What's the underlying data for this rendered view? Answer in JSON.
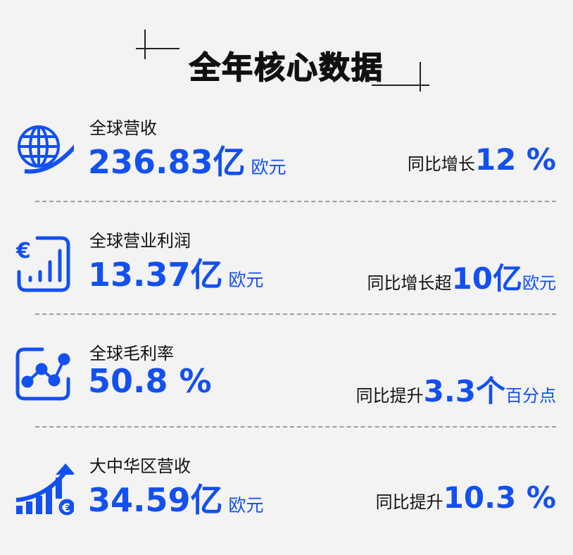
{
  "title": "全年核心数据",
  "accent_color": "#1350f0",
  "rows": [
    {
      "icon": "globe-arrow-icon",
      "label": "全球营收",
      "value": "236.83亿",
      "unit": "欧元",
      "compare_prefix": "同比增长",
      "compare_value": "12 %",
      "compare_suffix": ""
    },
    {
      "icon": "euro-bar-chart-icon",
      "label": "全球营业利润",
      "value": "13.37亿",
      "unit": "欧元",
      "compare_prefix": "同比增长超",
      "compare_value": "10亿",
      "compare_suffix": "欧元"
    },
    {
      "icon": "line-chart-icon",
      "label": "全球毛利率",
      "value": "50.8 %",
      "unit": "",
      "compare_prefix": "同比提升",
      "compare_value": "3.3个",
      "compare_suffix": "百分点"
    },
    {
      "icon": "growth-euro-icon",
      "label": "大中华区营收",
      "value": "34.59亿",
      "unit": "欧元",
      "compare_prefix": "同比提升",
      "compare_value": "10.3 %",
      "compare_suffix": ""
    }
  ]
}
